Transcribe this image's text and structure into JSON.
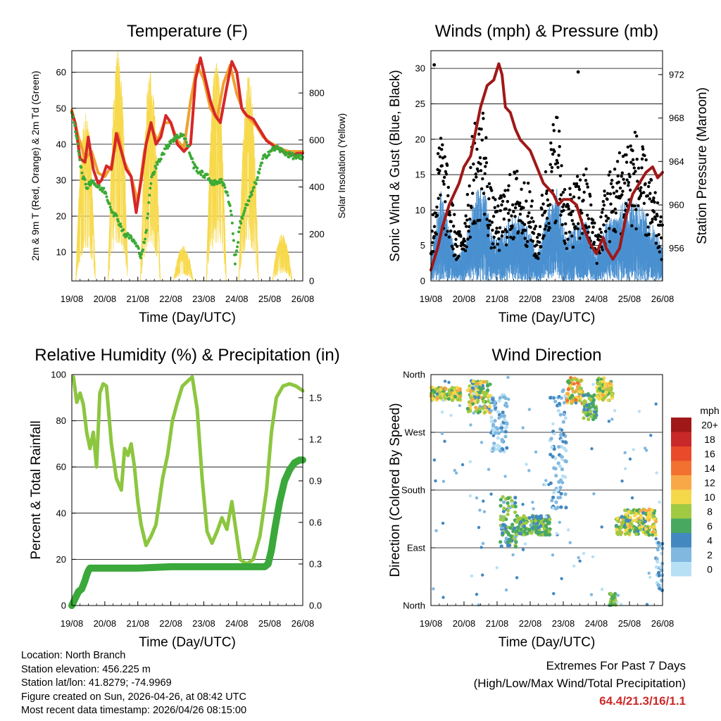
{
  "chart_data": [
    {
      "type": "line",
      "title": "Temperature (F)",
      "xlabel": "Time (Day/UTC)",
      "ylabel": "2m & 9m T (Red, Orange) & 2m Td (Green)",
      "y2label": "Solar Insolation (Yellow)",
      "x_ticks": [
        "19/08",
        "20/08",
        "21/08",
        "22/08",
        "23/08",
        "24/08",
        "25/08",
        "26/08"
      ],
      "ylim": [
        2,
        66
      ],
      "y_ticks": [
        10,
        20,
        30,
        40,
        50,
        60
      ],
      "y2lim": [
        0,
        980
      ],
      "y2_ticks": [
        0,
        200,
        400,
        600,
        800
      ],
      "series": [
        {
          "name": "2m T",
          "color": "#d62728",
          "x": [
            0,
            0.1,
            0.25,
            0.4,
            0.5,
            0.65,
            0.8,
            0.9,
            1.05,
            1.2,
            1.35,
            1.5,
            1.65,
            1.8,
            1.95,
            2.1,
            2.25,
            2.4,
            2.55,
            2.7,
            2.85,
            3.0,
            3.2,
            3.4,
            3.6,
            3.75,
            3.9,
            4.05,
            4.2,
            4.35,
            4.5,
            4.7,
            4.85,
            5.0,
            5.15,
            5.3,
            5.5,
            5.7,
            5.9,
            6.05,
            6.2,
            6.4,
            6.55,
            6.7,
            6.85,
            7.0
          ],
          "values": [
            49,
            46,
            36,
            35,
            42,
            33,
            29,
            30,
            34,
            33,
            43,
            38,
            33,
            31,
            21,
            30,
            40,
            46,
            40,
            42,
            48,
            46,
            40,
            38,
            40,
            58,
            64,
            58,
            52,
            48,
            46,
            56,
            63,
            60,
            50,
            48,
            47,
            44,
            41,
            40,
            39,
            38,
            37.5,
            37,
            37.5,
            37.5
          ]
        },
        {
          "name": "9m T",
          "color": "#f0a030",
          "x": [
            0,
            0.2,
            0.4,
            0.6,
            0.8,
            1.0,
            1.2,
            1.4,
            1.6,
            1.8,
            2.0,
            2.2,
            2.4,
            2.6,
            2.8,
            3.0,
            3.2,
            3.4,
            3.6,
            3.8,
            4.0,
            4.2,
            4.4,
            4.6,
            4.8,
            5.0,
            5.2,
            5.4,
            5.6,
            5.8,
            6.0,
            6.2,
            6.4,
            6.6,
            6.8,
            7.0
          ],
          "values": [
            49.5,
            42,
            36,
            38,
            32,
            31,
            34,
            43,
            35,
            31,
            24,
            38,
            45,
            41,
            46,
            46,
            41,
            39,
            52,
            62,
            58,
            50,
            47,
            57,
            62,
            54,
            49,
            47,
            45,
            42,
            40.5,
            39.5,
            38.5,
            38,
            38,
            38
          ]
        },
        {
          "name": "2m Td",
          "color": "#3aaa35",
          "x": [
            0,
            0.15,
            0.3,
            0.45,
            0.6,
            0.8,
            1.0,
            1.2,
            1.4,
            1.6,
            1.8,
            1.95,
            2.1,
            2.25,
            2.4,
            2.6,
            2.8,
            3.0,
            3.2,
            3.35,
            3.5,
            3.7,
            3.9,
            4.1,
            4.3,
            4.5,
            4.7,
            4.85,
            4.95,
            5.1,
            5.25,
            5.4,
            5.6,
            5.8,
            6.0,
            6.2,
            6.4,
            6.6,
            6.8,
            7.0
          ],
          "values": [
            49,
            42,
            32,
            28,
            30,
            28,
            27,
            22,
            19,
            15,
            14,
            12,
            9,
            15,
            30,
            35,
            38,
            41,
            42,
            43,
            40,
            34,
            32,
            31,
            29,
            30,
            27,
            20,
            7,
            18,
            22,
            25,
            30,
            36,
            38,
            39,
            38,
            37,
            36.5,
            36
          ]
        },
        {
          "name": "Solar Insolation",
          "color": "#f7d94c",
          "axis": "y2",
          "day_centers": [
            0.42,
            1.4,
            2.38,
            3.38,
            4.38,
            5.36,
            6.38
          ],
          "day_peaks": [
            720,
            980,
            900,
            150,
            940,
            880,
            200
          ]
        }
      ]
    },
    {
      "type": "scatter",
      "title": "Winds (mph) & Pressure (mb)",
      "xlabel": "Time (Day/UTC)",
      "ylabel": "Sonic Wind & Gust (Blue, Black)",
      "y2label": "Station Pressure (Maroon)",
      "x_ticks": [
        "19/08",
        "20/08",
        "21/08",
        "22/08",
        "23/08",
        "24/08",
        "25/08",
        "26/08"
      ],
      "ylim": [
        0,
        32.5
      ],
      "y_ticks": [
        0,
        5,
        10,
        15,
        20,
        25,
        30
      ],
      "y2lim": [
        953,
        974.2
      ],
      "y2_ticks": [
        956,
        960,
        964,
        968,
        972
      ],
      "series": [
        {
          "name": "Sonic Wind",
          "color": "#4a90d0",
          "envelope_x": [
            0,
            0.3,
            0.5,
            0.8,
            1.0,
            1.3,
            1.6,
            1.8,
            2.0,
            2.3,
            2.6,
            3.0,
            3.2,
            3.5,
            3.8,
            4.1,
            4.4,
            4.7,
            5.0,
            5.3,
            5.6,
            5.9,
            6.2,
            6.5,
            6.8,
            7.0
          ],
          "envelope_y": [
            3,
            11,
            7,
            3,
            4,
            10,
            12,
            6,
            5,
            7,
            8,
            6,
            3,
            8,
            11,
            5,
            7,
            7,
            3,
            7,
            8,
            10,
            10,
            8,
            6,
            4
          ]
        },
        {
          "name": "Gust",
          "color": "#000000",
          "envelope_x": [
            0,
            0.3,
            0.5,
            0.8,
            1.0,
            1.3,
            1.6,
            1.8,
            2.0,
            2.3,
            2.6,
            3.0,
            3.2,
            3.5,
            3.8,
            4.1,
            4.4,
            4.7,
            5.0,
            5.3,
            5.6,
            5.9,
            6.2,
            6.5,
            6.8,
            7.0
          ],
          "envelope_y": [
            5,
            17,
            12,
            5,
            7,
            17,
            19,
            10,
            8,
            11,
            12,
            10,
            5,
            13,
            19,
            9,
            11,
            12,
            5,
            11,
            13,
            16,
            16,
            13,
            9,
            6
          ],
          "outliers": [
            {
              "x": 0.1,
              "y": 30.5
            },
            {
              "x": 4.45,
              "y": 29.5
            }
          ]
        },
        {
          "name": "Station Pressure",
          "color": "#a01818",
          "axis": "y2",
          "x": [
            0,
            0.2,
            0.35,
            0.55,
            0.7,
            0.85,
            1.0,
            1.1,
            1.2,
            1.3,
            1.5,
            1.7,
            1.9,
            2.05,
            2.15,
            2.25,
            2.4,
            2.55,
            2.7,
            2.85,
            3.0,
            3.2,
            3.4,
            3.55,
            3.7,
            3.85,
            4.0,
            4.2,
            4.4,
            4.6,
            4.8,
            5.0,
            5.2,
            5.3,
            5.5,
            5.7,
            5.9,
            6.1,
            6.3,
            6.5,
            6.7,
            6.85,
            7.0
          ],
          "values": [
            954,
            956,
            958,
            960,
            961,
            962,
            963.5,
            964,
            964.5,
            966,
            969,
            971,
            971.5,
            973,
            972,
            969,
            968.5,
            967,
            966,
            965.5,
            965,
            963.5,
            962,
            961.5,
            961,
            960,
            960.5,
            960.5,
            960,
            958,
            956.5,
            955.5,
            957,
            956,
            955,
            956,
            959,
            961,
            962,
            963,
            963.5,
            962.5,
            963
          ]
        }
      ]
    },
    {
      "type": "line",
      "title": "Relative Humidity (%) & Precipitation (in)",
      "xlabel": "Time (Day/UTC)",
      "ylabel": "Percent & Total Rainfall",
      "x_ticks": [
        "19/08",
        "20/08",
        "21/08",
        "22/08",
        "23/08",
        "24/08",
        "25/08",
        "26/08"
      ],
      "ylim": [
        0,
        100
      ],
      "y_ticks": [
        0,
        20,
        40,
        60,
        80,
        100
      ],
      "y2lim": [
        0,
        1.667
      ],
      "y2_ticks": [
        "0.0",
        "0.3",
        "0.6",
        "0.9",
        "1.2",
        "1.5"
      ],
      "series": [
        {
          "name": "Relative Humidity",
          "color": "#8cc63f",
          "x": [
            0.05,
            0.15,
            0.25,
            0.35,
            0.45,
            0.55,
            0.65,
            0.75,
            0.85,
            0.95,
            1.05,
            1.2,
            1.35,
            1.5,
            1.6,
            1.7,
            1.8,
            1.9,
            2.0,
            2.1,
            2.25,
            2.4,
            2.55,
            2.75,
            2.9,
            3.05,
            3.2,
            3.35,
            3.5,
            3.65,
            3.8,
            3.95,
            4.1,
            4.25,
            4.4,
            4.55,
            4.7,
            4.85,
            4.95,
            5.1,
            5.3,
            5.5,
            5.7,
            5.9,
            6.05,
            6.2,
            6.4,
            6.6,
            6.8,
            7.0
          ],
          "values": [
            99,
            88,
            92,
            87,
            75,
            68,
            75,
            60,
            92,
            96,
            95,
            70,
            55,
            50,
            68,
            65,
            70,
            60,
            45,
            35,
            26,
            30,
            35,
            55,
            65,
            80,
            88,
            95,
            97,
            99,
            85,
            55,
            32,
            27,
            32,
            38,
            33,
            45,
            35,
            20,
            18,
            20,
            30,
            50,
            75,
            90,
            95,
            96,
            95,
            93
          ]
        },
        {
          "name": "Total Rainfall",
          "color": "#3aa83a",
          "axis": "y2",
          "x": [
            0,
            0.1,
            0.2,
            0.3,
            0.4,
            0.45,
            0.5,
            0.55,
            1.0,
            2.0,
            3.0,
            4.0,
            5.0,
            5.85,
            5.95,
            6.05,
            6.15,
            6.3,
            6.45,
            6.6,
            6.75,
            6.9,
            7.0
          ],
          "values": [
            0,
            0.05,
            0.1,
            0.12,
            0.18,
            0.22,
            0.25,
            0.27,
            0.27,
            0.27,
            0.28,
            0.28,
            0.28,
            0.28,
            0.3,
            0.4,
            0.55,
            0.75,
            0.9,
            0.98,
            1.03,
            1.05,
            1.05
          ]
        }
      ]
    },
    {
      "type": "scatter",
      "title": "Wind Direction",
      "xlabel": "Time (Day/UTC)",
      "ylabel": "Direction (Colored By Speed)",
      "x_ticks": [
        "19/08",
        "20/08",
        "21/08",
        "22/08",
        "23/08",
        "24/08",
        "25/08",
        "26/08"
      ],
      "ylim": [
        0,
        360
      ],
      "y_tick_values": [
        0,
        90,
        180,
        270,
        360
      ],
      "y_ticks": [
        "North",
        "East",
        "South",
        "West",
        "North"
      ],
      "colorbar": {
        "unit": "mph",
        "labels": [
          "20+",
          "18",
          "16",
          "14",
          "12",
          "10",
          "8",
          "6",
          "4",
          "2",
          "0"
        ],
        "colors": [
          "#a01818",
          "#c82828",
          "#e84a2a",
          "#f27030",
          "#f9a848",
          "#f4d84a",
          "#9fca42",
          "#48a860",
          "#4488c0",
          "#80b8e0",
          "#b8e0f4"
        ]
      },
      "clusters": [
        {
          "x": [
            0.0,
            0.9
          ],
          "dir": [
            320,
            340
          ],
          "speed": [
            6,
            12
          ]
        },
        {
          "x": [
            1.1,
            1.8
          ],
          "dir": [
            300,
            350
          ],
          "speed": [
            4,
            12
          ]
        },
        {
          "x": [
            1.8,
            2.3
          ],
          "dir": [
            240,
            330
          ],
          "speed": [
            0,
            4
          ]
        },
        {
          "x": [
            2.1,
            2.6
          ],
          "dir": [
            90,
            170
          ],
          "speed": [
            2,
            9
          ]
        },
        {
          "x": [
            2.6,
            3.6
          ],
          "dir": [
            110,
            140
          ],
          "speed": [
            4,
            9
          ]
        },
        {
          "x": [
            3.6,
            4.1
          ],
          "dir": [
            150,
            340
          ],
          "speed": [
            0,
            4
          ]
        },
        {
          "x": [
            4.1,
            4.6
          ],
          "dir": [
            315,
            355
          ],
          "speed": [
            6,
            15
          ]
        },
        {
          "x": [
            4.6,
            5.0
          ],
          "dir": [
            290,
            330
          ],
          "speed": [
            4,
            8
          ]
        },
        {
          "x": [
            5.0,
            5.5
          ],
          "dir": [
            320,
            355
          ],
          "speed": [
            6,
            12
          ]
        },
        {
          "x": [
            5.4,
            5.6
          ],
          "dir": [
            0,
            20
          ],
          "speed": [
            6,
            8
          ]
        },
        {
          "x": [
            5.6,
            6.8
          ],
          "dir": [
            110,
            150
          ],
          "speed": [
            4,
            12
          ]
        },
        {
          "x": [
            6.8,
            7.0
          ],
          "dir": [
            20,
            100
          ],
          "speed": [
            0,
            4
          ]
        }
      ]
    }
  ],
  "info": {
    "location": "Location: North Branch",
    "elevation": "Station elevation: 456.225 m",
    "latlon": "Station lat/lon: 41.8279; -74.9969",
    "created": "Figure created on Sun, 2026-04-26, at 08:42 UTC",
    "recent": "Most recent data timestamp: 2026/04/26 08:15:00"
  },
  "extremes": {
    "title": "Extremes For Past 7 Days",
    "subtitle": "(High/Low/Max Wind/Total Precipitation)",
    "values": "64.4/21.3/16/1.1"
  }
}
